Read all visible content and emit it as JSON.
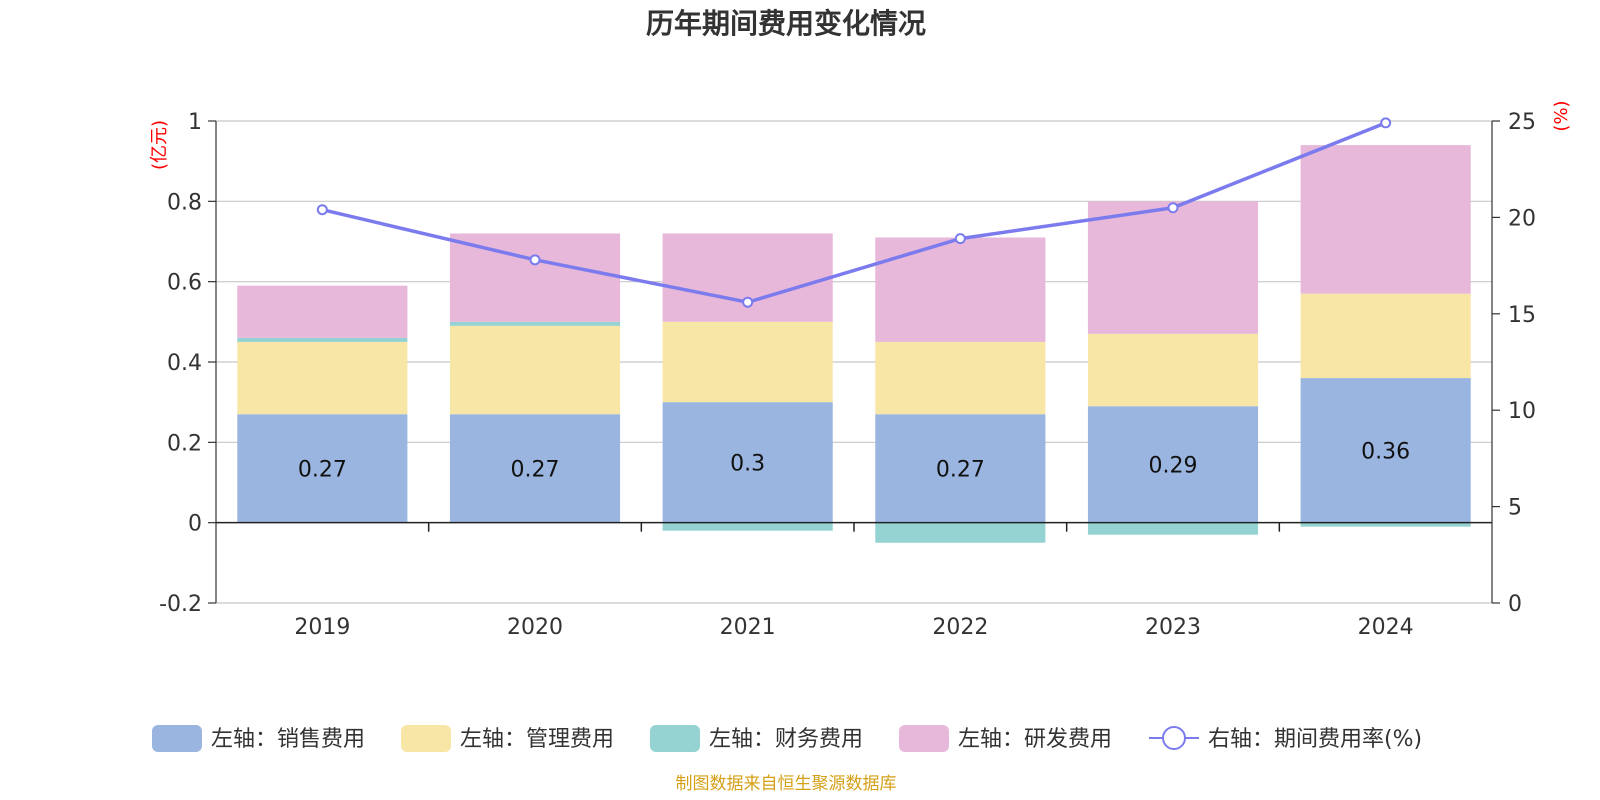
{
  "chart_data": {
    "type": "bar",
    "stacked": true,
    "title": "历年期间费用变化情况",
    "categories": [
      "2019",
      "2020",
      "2021",
      "2022",
      "2023",
      "2024"
    ],
    "left_axis": {
      "unit": "(亿元)",
      "ylim": [
        -0.2,
        1
      ],
      "ticks": [
        1,
        0.8,
        0.6,
        0.4,
        0.2,
        0,
        -0.2
      ],
      "tick_labels": [
        "1",
        "0.8",
        "0.6",
        "0.4",
        "0.2",
        "0",
        "-0.2"
      ]
    },
    "right_axis": {
      "unit": "(%)",
      "ylim": [
        0,
        25
      ],
      "ticks": [
        25,
        20,
        15,
        10,
        5,
        0
      ],
      "tick_labels": [
        "25",
        "20",
        "15",
        "10",
        "5",
        "0"
      ]
    },
    "series": [
      {
        "name": "左轴：销售费用",
        "axis": "left",
        "color": "#9ab6e0",
        "values": [
          0.27,
          0.27,
          0.3,
          0.27,
          0.29,
          0.36
        ],
        "labels": [
          "0.27",
          "0.27",
          "0.3",
          "0.27",
          "0.29",
          "0.36"
        ]
      },
      {
        "name": "左轴：管理费用",
        "axis": "left",
        "color": "#f8e6a6",
        "values": [
          0.18,
          0.22,
          0.2,
          0.18,
          0.18,
          0.21
        ]
      },
      {
        "name": "左轴：财务费用",
        "axis": "left",
        "color": "#95d3d3",
        "values": [
          0.01,
          0.01,
          -0.02,
          -0.05,
          -0.03,
          -0.01
        ]
      },
      {
        "name": "左轴：研发费用",
        "axis": "left",
        "color": "#e7b8d9",
        "values": [
          0.13,
          0.22,
          0.22,
          0.26,
          0.33,
          0.37
        ]
      },
      {
        "name": "右轴：期间费用率(%)",
        "axis": "right",
        "type": "line",
        "color": "#7b7bee",
        "values": [
          20.4,
          17.8,
          15.6,
          18.9,
          20.5,
          24.9
        ]
      }
    ],
    "source": "制图数据来自恒生聚源数据库",
    "source_color": "#d4a017"
  }
}
